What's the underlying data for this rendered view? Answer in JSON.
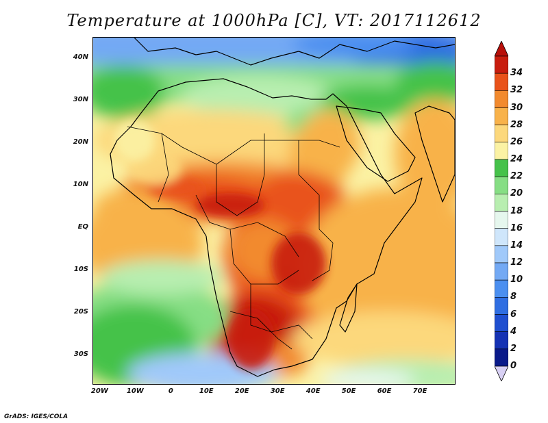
{
  "title": "Temperature at 1000hPa [C], VT: 2017112612",
  "footer": "GrADS: IGES/COLA",
  "map": {
    "lat_labels": [
      "40N",
      "30N",
      "20N",
      "10N",
      "EQ",
      "10S",
      "20S",
      "30S"
    ],
    "lon_labels": [
      "20W",
      "10W",
      "0",
      "10E",
      "20E",
      "30E",
      "40E",
      "50E",
      "60E",
      "70E"
    ],
    "lon_range": [
      -22,
      80
    ],
    "lat_range": [
      -37,
      45
    ]
  },
  "colorbar": {
    "levels": [
      "0",
      "2",
      "4",
      "6",
      "8",
      "10",
      "12",
      "14",
      "16",
      "18",
      "20",
      "22",
      "24",
      "26",
      "28",
      "30",
      "32",
      "34"
    ],
    "colors": [
      "#0a1a8a",
      "#1532b4",
      "#1f4fd0",
      "#2f6ee2",
      "#4b8ff0",
      "#73a9f4",
      "#a0c9fa",
      "#cfe6fb",
      "#e6f7ee",
      "#b8eeb0",
      "#86de84",
      "#45c24a",
      "#fbf2a4",
      "#fcd87c",
      "#f8b24a",
      "#f28a2e",
      "#e9521a",
      "#c81d0e"
    ],
    "under_color": "#d8d0f4",
    "over_color": "#b8100a"
  }
}
